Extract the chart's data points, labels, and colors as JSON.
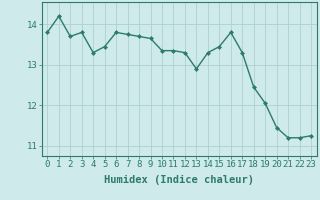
{
  "x": [
    0,
    1,
    2,
    3,
    4,
    5,
    6,
    7,
    8,
    9,
    10,
    11,
    12,
    13,
    14,
    15,
    16,
    17,
    18,
    19,
    20,
    21,
    22,
    23
  ],
  "y": [
    13.8,
    14.2,
    13.7,
    13.8,
    13.3,
    13.45,
    13.8,
    13.75,
    13.7,
    13.65,
    13.35,
    13.35,
    13.3,
    12.9,
    13.3,
    13.45,
    13.8,
    13.3,
    12.45,
    12.05,
    11.45,
    11.2,
    11.2,
    11.25
  ],
  "line_color": "#2d7a6e",
  "marker": "D",
  "markersize": 2.0,
  "linewidth": 1.0,
  "bg_color": "#ceeaea",
  "grid_color": "#aed0d0",
  "xlabel": "Humidex (Indice chaleur)",
  "ylim": [
    10.75,
    14.55
  ],
  "xlim": [
    -0.5,
    23.5
  ],
  "yticks": [
    11,
    12,
    13,
    14
  ],
  "xticks": [
    0,
    1,
    2,
    3,
    4,
    5,
    6,
    7,
    8,
    9,
    10,
    11,
    12,
    13,
    14,
    15,
    16,
    17,
    18,
    19,
    20,
    21,
    22,
    23
  ],
  "xlabel_fontsize": 7.5,
  "tick_fontsize": 6.5,
  "tick_color": "#2d7a6e",
  "spine_color": "#2d7a6e"
}
